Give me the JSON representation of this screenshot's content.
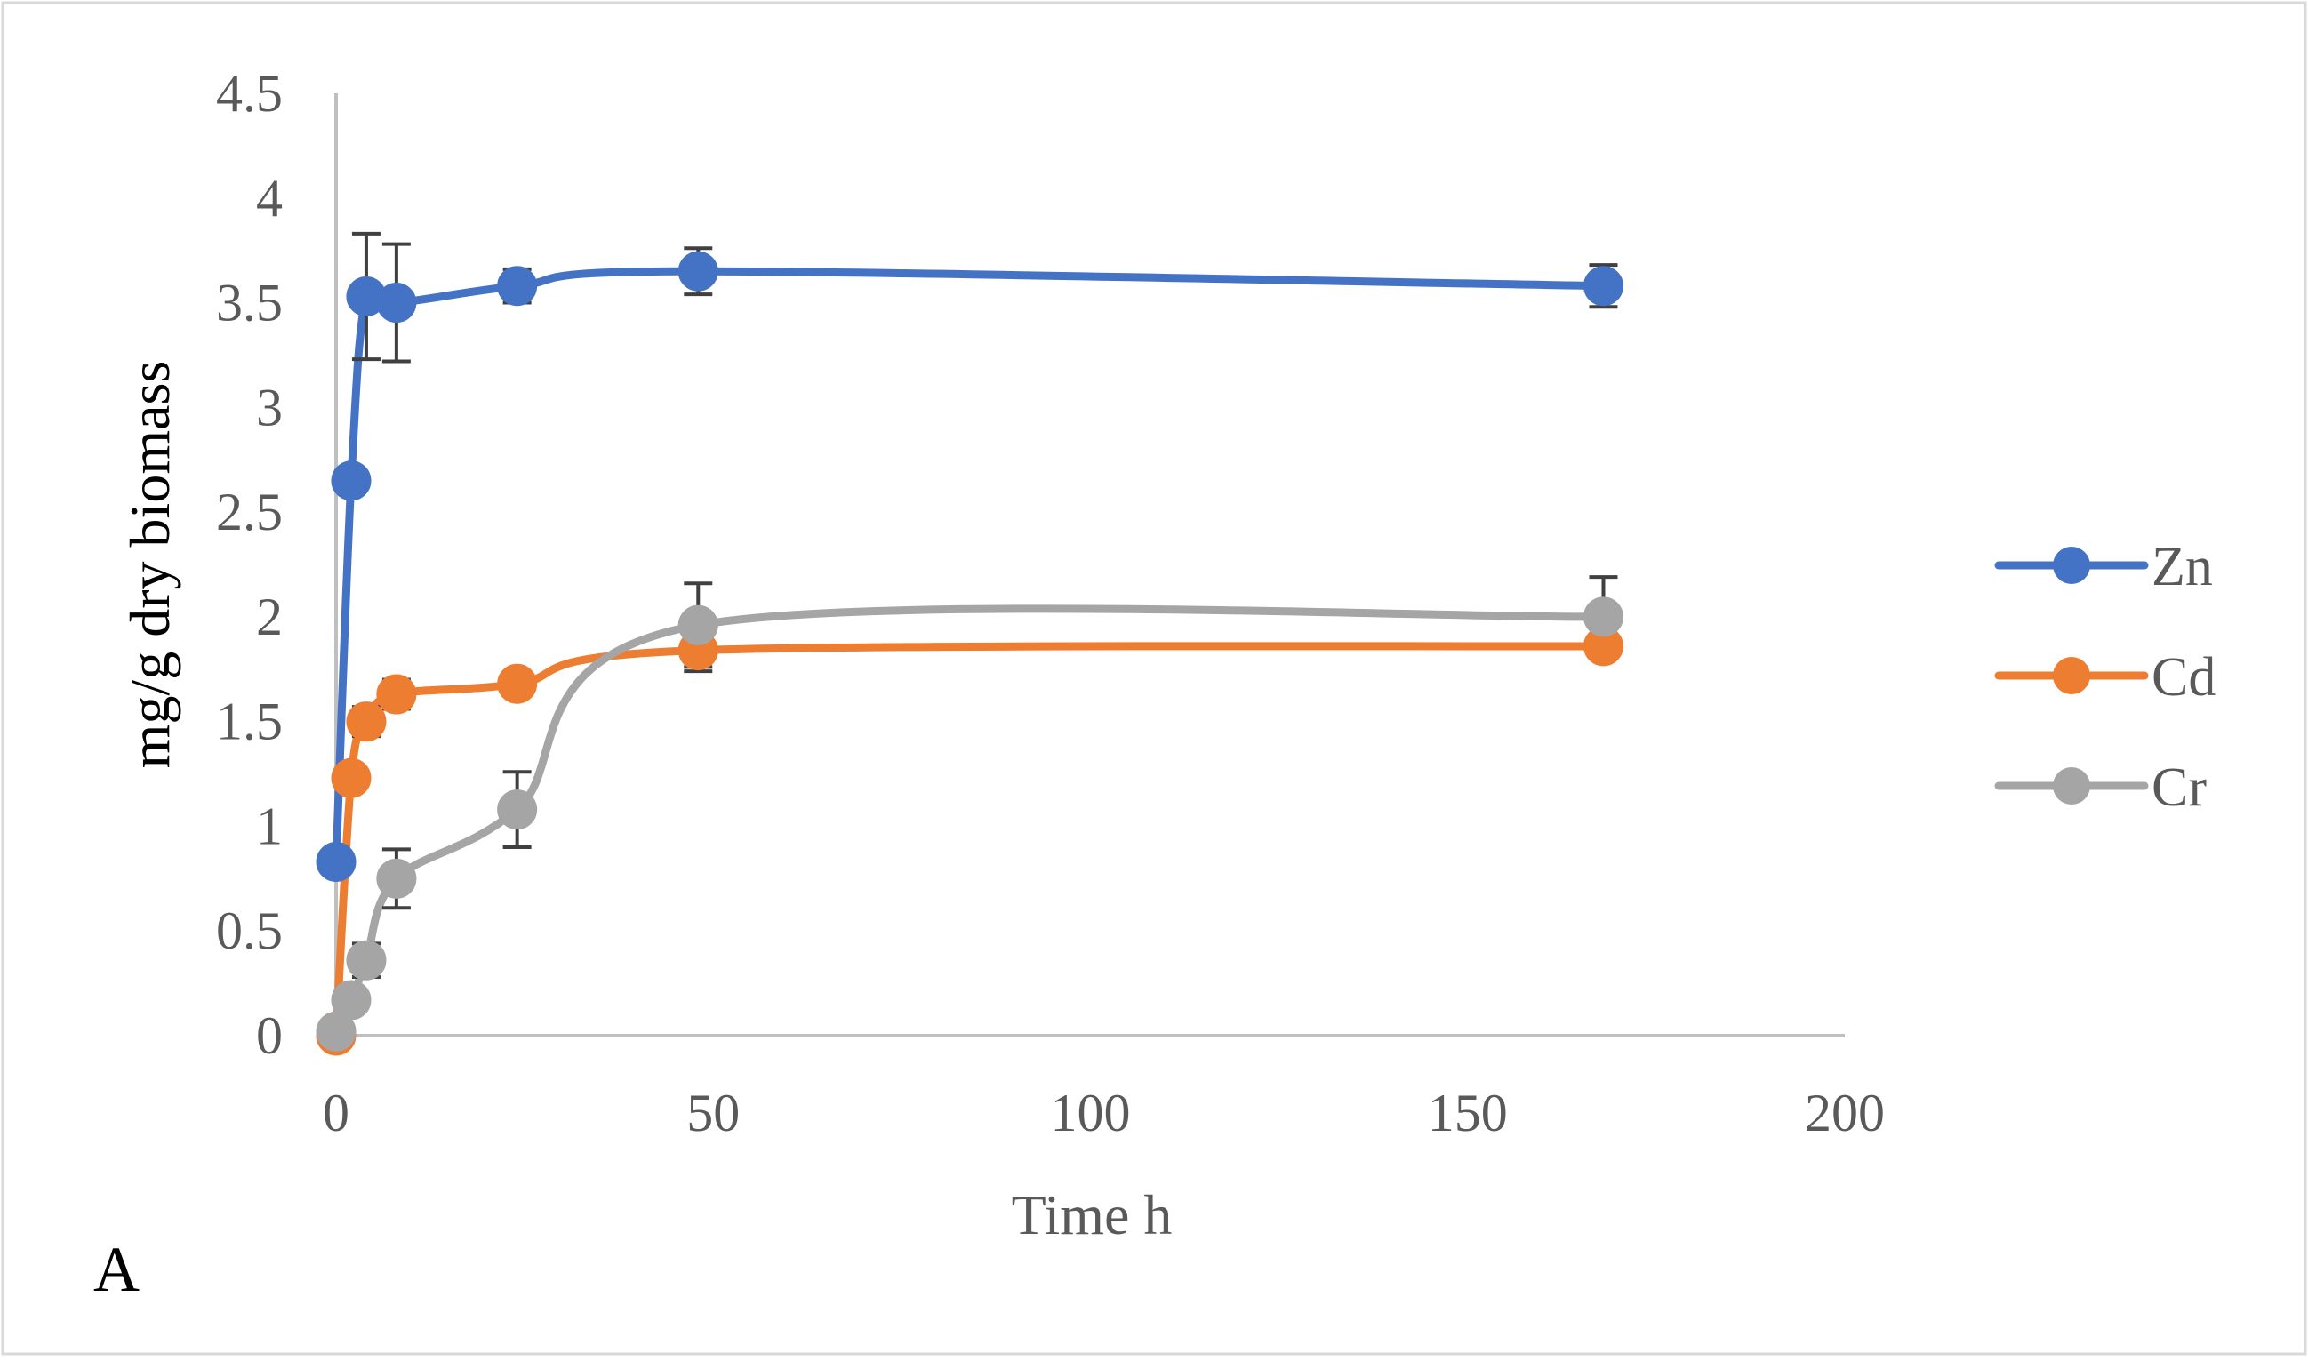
{
  "panel_label": "A",
  "chart_data": {
    "type": "scatter",
    "title": "",
    "xlabel": "Time h",
    "ylabel": "mg/g dry biomass",
    "xlim": [
      0,
      200
    ],
    "ylim": [
      0,
      4.5
    ],
    "xticks": [
      0,
      50,
      100,
      150,
      200
    ],
    "yticks": [
      0,
      0.5,
      1,
      1.5,
      2,
      2.5,
      3,
      3.5,
      4,
      4.5
    ],
    "grid": false,
    "smooth_lines": true,
    "error_bars": true,
    "legend_position": "right",
    "series": [
      {
        "name": "Zn",
        "color": "#4472C4",
        "x": [
          0,
          2,
          4,
          8,
          24,
          48,
          168
        ],
        "y": [
          0.83,
          2.65,
          3.53,
          3.5,
          3.58,
          3.65,
          3.58
        ],
        "error": [
          0,
          0,
          0.3,
          0.28,
          0.08,
          0.11,
          0.1
        ]
      },
      {
        "name": "Cd",
        "color": "#ED7D31",
        "x": [
          0,
          2,
          4,
          8,
          24,
          48,
          168
        ],
        "y": [
          0.0,
          1.23,
          1.5,
          1.63,
          1.68,
          1.84,
          1.86
        ],
        "error": [
          0,
          0,
          0.07,
          0.07,
          0,
          0.1,
          0
        ]
      },
      {
        "name": "Cr",
        "color": "#A5A5A5",
        "x": [
          0,
          2,
          4,
          8,
          24,
          48,
          168
        ],
        "y": [
          0.02,
          0.17,
          0.36,
          0.75,
          1.08,
          1.96,
          2.0
        ],
        "error": [
          0,
          0,
          0.08,
          0.14,
          0.18,
          0.2,
          0.19
        ]
      }
    ]
  }
}
